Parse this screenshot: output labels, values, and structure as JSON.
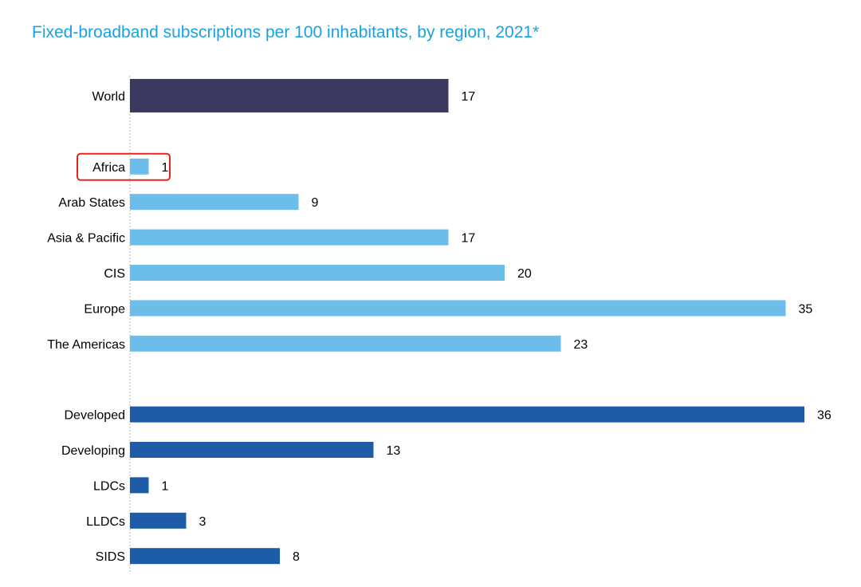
{
  "colors": {
    "title": "#1aa1e0",
    "world": "#3b3960",
    "regions": "#6cbde9",
    "groups": "#1f5ca8",
    "highlight": "#e3261c",
    "axis": "#b8b8b8"
  },
  "chart_data": {
    "type": "bar",
    "orientation": "horizontal",
    "title": "Fixed-broadband subscriptions per 100 inhabitants, by region, 2021*",
    "xlabel": "",
    "ylabel": "",
    "xlim": [
      0,
      36
    ],
    "grid": false,
    "legend": "none",
    "highlighted_category": "Africa",
    "groups": [
      {
        "name": "world",
        "categories": [
          "World"
        ],
        "values": [
          17
        ]
      },
      {
        "name": "regions",
        "categories": [
          "Africa",
          "Arab States",
          "Asia & Pacific",
          "CIS",
          "Europe",
          "The Americas"
        ],
        "values": [
          1,
          9,
          17,
          20,
          35,
          23
        ]
      },
      {
        "name": "groups",
        "categories": [
          "Developed",
          "Developing",
          "LDCs",
          "LLDCs",
          "SIDS"
        ],
        "values": [
          36,
          13,
          1,
          3,
          8
        ]
      }
    ]
  }
}
